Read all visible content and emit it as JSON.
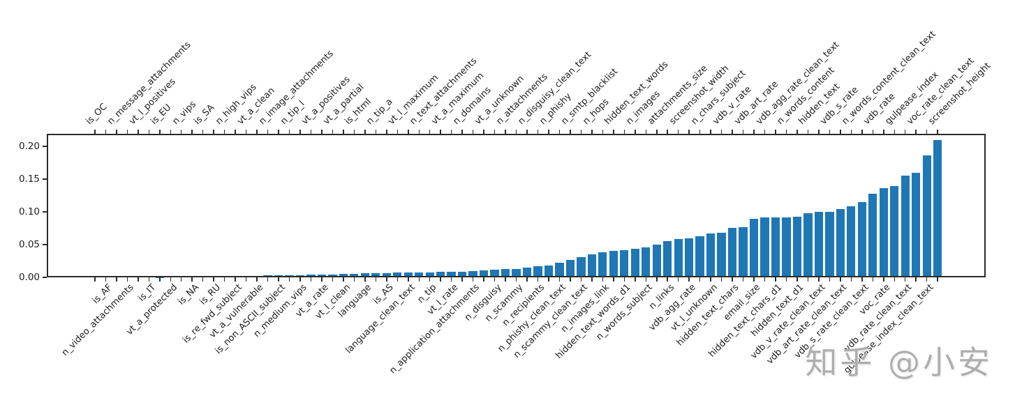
{
  "watermark": {
    "text": "知乎 @小安"
  },
  "chart_data": {
    "type": "bar",
    "title": "",
    "xlabel": "",
    "ylabel": "",
    "bar_color": "#1f77b4",
    "axis_color": "#2a2a2a",
    "grid": false,
    "legend": null,
    "ylim": [
      0,
      0.219
    ],
    "yticks": [
      0.0,
      0.05,
      0.1,
      0.15,
      0.2
    ],
    "ytick_labels": [
      "0.00",
      "0.05",
      "0.10",
      "0.15",
      "0.20"
    ],
    "xtick_label_rotation_deg": 45,
    "xtick_label_placement": "alternating: even-index bars labeled on top axis, odd-index bars on bottom axis",
    "bars": [
      {
        "label": "is_OC",
        "side": "top",
        "value": 0
      },
      {
        "label": "is_AF",
        "side": "bottom",
        "value": 0
      },
      {
        "label": "n_message_attachments",
        "side": "top",
        "value": 0
      },
      {
        "label": "n_video_attachments",
        "side": "bottom",
        "value": 0.0001
      },
      {
        "label": "vt_l_positives",
        "side": "top",
        "value": 0.0002
      },
      {
        "label": "is_IT",
        "side": "bottom",
        "value": 0.0003
      },
      {
        "label": "is_EU",
        "side": "top",
        "value": 0.0004
      },
      {
        "label": "vt_a_protected",
        "side": "bottom",
        "value": 0.0006
      },
      {
        "label": "n_vips",
        "side": "top",
        "value": 0.0008
      },
      {
        "label": "is_NA",
        "side": "bottom",
        "value": 0.001
      },
      {
        "label": "is_SA",
        "side": "top",
        "value": 0.0012
      },
      {
        "label": "is_RU",
        "side": "bottom",
        "value": 0.0015
      },
      {
        "label": "n_high_vips",
        "side": "top",
        "value": 0.0018
      },
      {
        "label": "is_re_fwd_subject",
        "side": "bottom",
        "value": 0.002
      },
      {
        "label": "vt_a_clean",
        "side": "top",
        "value": 0.0022
      },
      {
        "label": "vt_a_vulnerable",
        "side": "bottom",
        "value": 0.0025
      },
      {
        "label": "n_image_attachments",
        "side": "top",
        "value": 0.0028
      },
      {
        "label": "is_non_ASCII_subject",
        "side": "bottom",
        "value": 0.003
      },
      {
        "label": "n_tip_l",
        "side": "top",
        "value": 0.0033
      },
      {
        "label": "n_medium_vips",
        "side": "bottom",
        "value": 0.0036
      },
      {
        "label": "vt_a_positives",
        "side": "top",
        "value": 0.004
      },
      {
        "label": "vt_a_rate",
        "side": "bottom",
        "value": 0.0043
      },
      {
        "label": "vt_a_partial",
        "side": "top",
        "value": 0.0046
      },
      {
        "label": "vt_l_clean",
        "side": "bottom",
        "value": 0.005
      },
      {
        "label": "is_html",
        "side": "top",
        "value": 0.0055
      },
      {
        "label": "language",
        "side": "bottom",
        "value": 0.006
      },
      {
        "label": "n_tip_a",
        "side": "top",
        "value": 0.0063
      },
      {
        "label": "is_AS",
        "side": "bottom",
        "value": 0.0066
      },
      {
        "label": "vt_l_maximum",
        "side": "top",
        "value": 0.007
      },
      {
        "label": "language_clean_text",
        "side": "bottom",
        "value": 0.0073
      },
      {
        "label": "n_text_attachments",
        "side": "top",
        "value": 0.0077
      },
      {
        "label": "n_tip",
        "side": "bottom",
        "value": 0.008
      },
      {
        "label": "vt_a_maximum",
        "side": "top",
        "value": 0.0083
      },
      {
        "label": "vt_l_rate",
        "side": "bottom",
        "value": 0.0087
      },
      {
        "label": "n_domains",
        "side": "top",
        "value": 0.009
      },
      {
        "label": "n_application_attachments",
        "side": "bottom",
        "value": 0.0095
      },
      {
        "label": "vt_a_unknown",
        "side": "top",
        "value": 0.0105
      },
      {
        "label": "n_disguisy",
        "side": "bottom",
        "value": 0.0115
      },
      {
        "label": "n_attachments",
        "side": "top",
        "value": 0.0125
      },
      {
        "label": "n_scammy",
        "side": "bottom",
        "value": 0.013
      },
      {
        "label": "n_disguisy_clean_text",
        "side": "top",
        "value": 0.0145
      },
      {
        "label": "n_recipients",
        "side": "bottom",
        "value": 0.017
      },
      {
        "label": "n_phishy",
        "side": "top",
        "value": 0.018
      },
      {
        "label": "n_phishy_clean_text",
        "side": "bottom",
        "value": 0.022
      },
      {
        "label": "n_smtp_blacklist",
        "side": "top",
        "value": 0.027
      },
      {
        "label": "n_scammy_clean_text",
        "side": "bottom",
        "value": 0.0305
      },
      {
        "label": "n_hops",
        "side": "top",
        "value": 0.035
      },
      {
        "label": "n_images_link",
        "side": "bottom",
        "value": 0.0385
      },
      {
        "label": "hidden_text_words",
        "side": "top",
        "value": 0.0405
      },
      {
        "label": "hidden_text_words_d1",
        "side": "bottom",
        "value": 0.042
      },
      {
        "label": "n_images",
        "side": "top",
        "value": 0.044
      },
      {
        "label": "n_words_subject",
        "side": "bottom",
        "value": 0.0455
      },
      {
        "label": "attachments_size",
        "side": "top",
        "value": 0.05
      },
      {
        "label": "n_links",
        "side": "bottom",
        "value": 0.055
      },
      {
        "label": "screenshot_width",
        "side": "top",
        "value": 0.058
      },
      {
        "label": "vdb_agg_rate",
        "side": "bottom",
        "value": 0.06
      },
      {
        "label": "n_chars_subject",
        "side": "top",
        "value": 0.063
      },
      {
        "label": "vt_l_unknown",
        "side": "bottom",
        "value": 0.0675
      },
      {
        "label": "vdb_v_rate",
        "side": "top",
        "value": 0.068
      },
      {
        "label": "hidden_text_chars",
        "side": "bottom",
        "value": 0.076
      },
      {
        "label": "vdb_art_rate",
        "side": "top",
        "value": 0.077
      },
      {
        "label": "email_size",
        "side": "bottom",
        "value": 0.089
      },
      {
        "label": "vdb_agg_rate_clean_text",
        "side": "top",
        "value": 0.091
      },
      {
        "label": "hidden_text_chars_d1",
        "side": "bottom",
        "value": 0.091
      },
      {
        "label": "n_words_content",
        "side": "top",
        "value": 0.092
      },
      {
        "label": "hidden_text_d1",
        "side": "bottom",
        "value": 0.093
      },
      {
        "label": "hidden_text",
        "side": "top",
        "value": 0.098
      },
      {
        "label": "vdb_v_rate_clean_text",
        "side": "bottom",
        "value": 0.1
      },
      {
        "label": "vdb_s_rate",
        "side": "top",
        "value": 0.1
      },
      {
        "label": "vdb_art_rate_clean_text",
        "side": "bottom",
        "value": 0.104
      },
      {
        "label": "n_words_content_clean_text",
        "side": "top",
        "value": 0.108
      },
      {
        "label": "vdb_s_rate_clean_text",
        "side": "bottom",
        "value": 0.115
      },
      {
        "label": "vdb_rate",
        "side": "top",
        "value": 0.128
      },
      {
        "label": "voc_rate",
        "side": "bottom",
        "value": 0.136
      },
      {
        "label": "gulpease_index",
        "side": "top",
        "value": 0.139
      },
      {
        "label": "vdb_rate_clean_text",
        "side": "bottom",
        "value": 0.155
      },
      {
        "label": "voc_rate_clean_text",
        "side": "top",
        "value": 0.16
      },
      {
        "label": "gulpease_index_clean_text",
        "side": "bottom",
        "value": 0.186
      },
      {
        "label": "screenshot_height",
        "side": "top",
        "value": 0.209
      }
    ]
  }
}
